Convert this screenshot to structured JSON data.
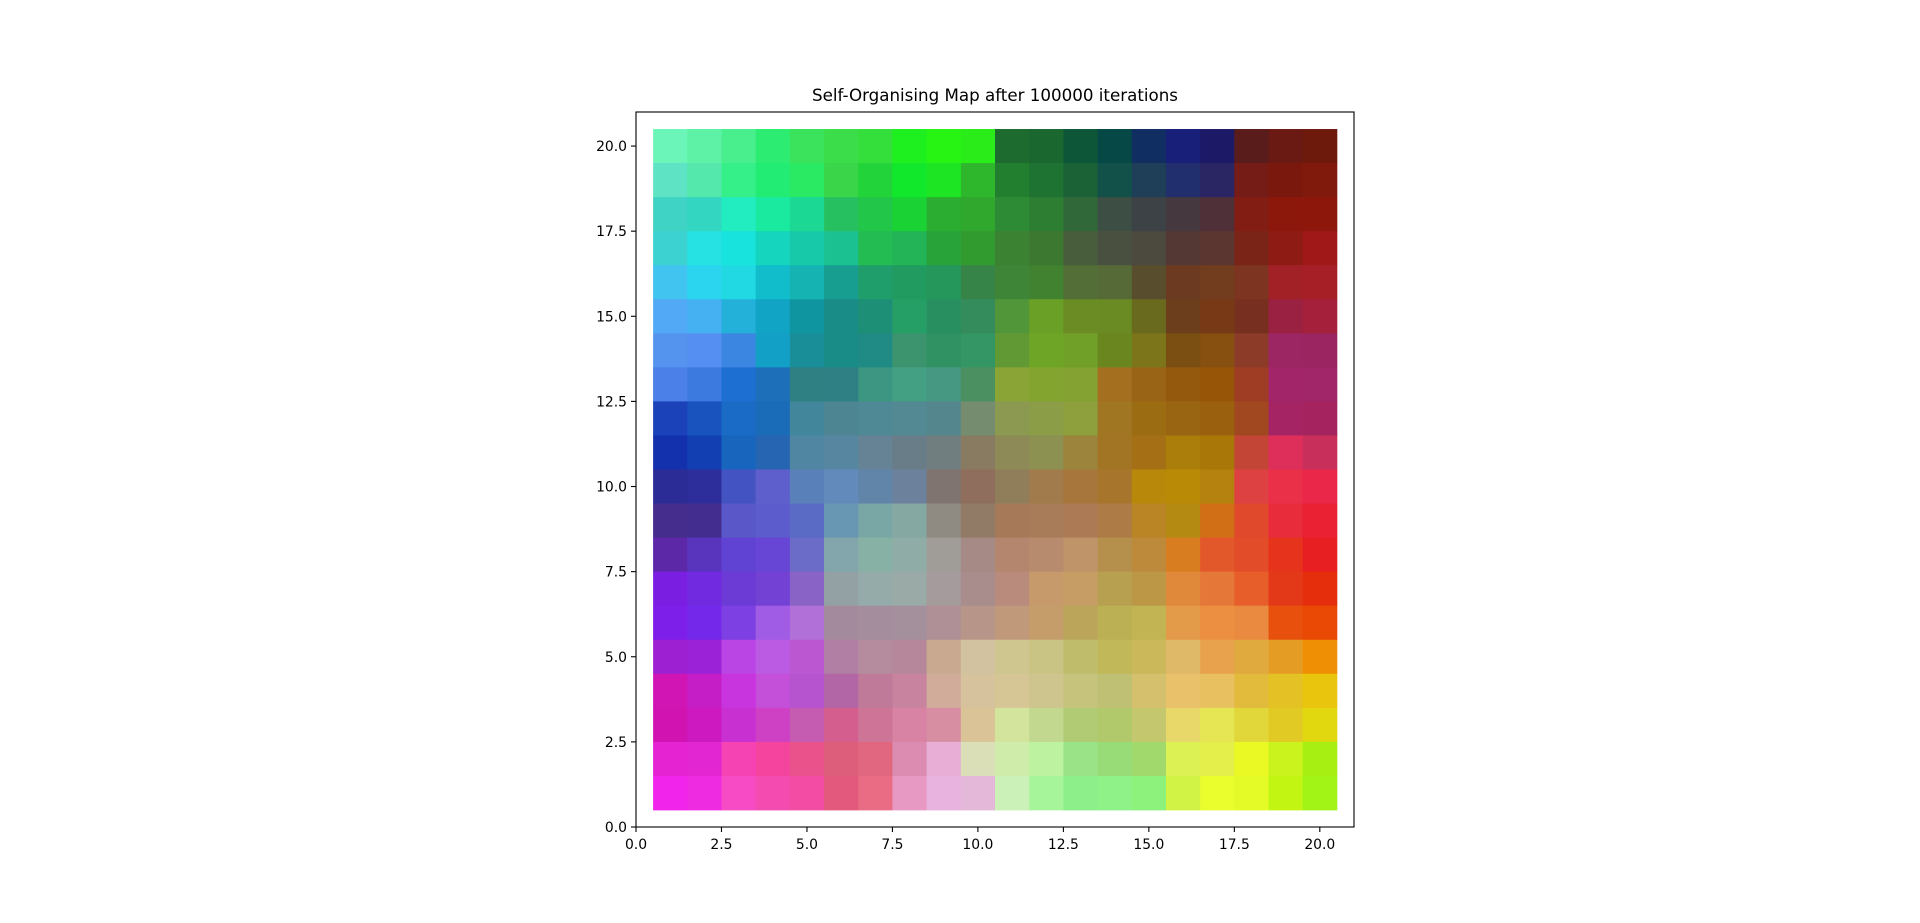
{
  "chart_data": {
    "type": "heatmap",
    "title": "Self-Organising Map after 100000 iterations",
    "xlabel": "",
    "ylabel": "",
    "xlim": [
      0.0,
      21.0
    ],
    "ylim": [
      0.0,
      21.0
    ],
    "x_ticks": [
      0.0,
      2.5,
      5.0,
      7.5,
      10.0,
      12.5,
      15.0,
      17.5,
      20.0
    ],
    "x_tick_labels": [
      "0.0",
      "2.5",
      "5.0",
      "7.5",
      "10.0",
      "12.5",
      "15.0",
      "17.5",
      "20.0"
    ],
    "y_ticks": [
      0.0,
      2.5,
      5.0,
      7.5,
      10.0,
      12.5,
      15.0,
      17.5,
      20.0
    ],
    "y_tick_labels": [
      "0.0",
      "2.5",
      "5.0",
      "7.5",
      "10.0",
      "12.5",
      "15.0",
      "17.5",
      "20.0"
    ],
    "grid": false,
    "cell_centers_x": [
      1,
      2,
      3,
      4,
      5,
      6,
      7,
      8,
      9,
      10,
      11,
      12,
      13,
      14,
      15,
      16,
      17,
      18,
      19,
      20
    ],
    "cell_centers_y_top_to_bottom": [
      20,
      19,
      18,
      17,
      16,
      15,
      14,
      13,
      12,
      11,
      10,
      9,
      8,
      7,
      6,
      5,
      4,
      3,
      2,
      1
    ],
    "cell_colors_rows_top_to_bottom": [
      [
        "#6cf5b8",
        "#5ef2a6",
        "#48ef8c",
        "#2ced72",
        "#3be25c",
        "#3bdd4b",
        "#34df3c",
        "#1ef01f",
        "#27f412",
        "#29ec18",
        "#1d6b2e",
        "#1a6830",
        "#0d5738",
        "#064845",
        "#112e63",
        "#171f78",
        "#1c1a66",
        "#5a1b1b",
        "#6a1913",
        "#6d1a0d"
      ],
      [
        "#5ee4c4",
        "#55e8ac",
        "#35ef88",
        "#22ec74",
        "#2aea63",
        "#3ad548",
        "#22d43a",
        "#12e82b",
        "#1ee523",
        "#2eb62d",
        "#237f30",
        "#1e7333",
        "#1b6237",
        "#12504a",
        "#1f3e58",
        "#222f6e",
        "#2a2563",
        "#761c17",
        "#7a180d",
        "#801a0c"
      ],
      [
        "#3fd3c5",
        "#33d6c0",
        "#22edc1",
        "#19eaa0",
        "#1bd994",
        "#27c061",
        "#22c648",
        "#1bd235",
        "#2aad30",
        "#30a82e",
        "#2d8b35",
        "#2d7d33",
        "#31683a",
        "#3d4e44",
        "#3d4247",
        "#46383f",
        "#4f3039",
        "#821d13",
        "#8c180c",
        "#8e170c"
      ],
      [
        "#3cd2d2",
        "#26e2e2",
        "#19e3dd",
        "#15d5be",
        "#17c9a8",
        "#1cc191",
        "#23bc52",
        "#22b456",
        "#28a33a",
        "#329b30",
        "#3b8232",
        "#3d7830",
        "#485d3c",
        "#4a5040",
        "#4c4a3f",
        "#543834",
        "#5b3530",
        "#7a2417",
        "#8e1b14",
        "#a11818"
      ],
      [
        "#41c4ef",
        "#2bd5ef",
        "#21d9e2",
        "#11bccb",
        "#15b4b2",
        "#179e91",
        "#1f9d6b",
        "#219b5f",
        "#25975b",
        "#378448",
        "#3e8538",
        "#408230",
        "#536e36",
        "#556a37",
        "#584d2c",
        "#6c3a20",
        "#713d1e",
        "#7d3420",
        "#a22126",
        "#a61f27"
      ],
      [
        "#52aaf6",
        "#45b1f2",
        "#23b1da",
        "#12a4c4",
        "#0f95a0",
        "#1a8c87",
        "#1e8f77",
        "#259f66",
        "#289060",
        "#348c5c",
        "#519739",
        "#6ba026",
        "#6b8b24",
        "#6a8a24",
        "#6a6a1f",
        "#6d3e1c",
        "#783a16",
        "#773020",
        "#9b2142",
        "#a5203a"
      ],
      [
        "#5594ee",
        "#558ff2",
        "#3b86e0",
        "#13a0c6",
        "#1a8e98",
        "#1a8c87",
        "#208a84",
        "#3c946f",
        "#309162",
        "#349565",
        "#619a35",
        "#6fa526",
        "#71a029",
        "#69861f",
        "#7c7519",
        "#7b4e12",
        "#874f10",
        "#8c3b28",
        "#9c2563",
        "#9b2561"
      ],
      [
        "#4b80e9",
        "#3d7ae0",
        "#1e6fd2",
        "#1c6fb8",
        "#2e8083",
        "#2e8085",
        "#3c9681",
        "#44a083",
        "#469883",
        "#4a9061",
        "#8aa536",
        "#83a52f",
        "#83a232",
        "#a47020",
        "#9a6417",
        "#95590d",
        "#975508",
        "#9e3d24",
        "#a12568",
        "#a12569"
      ],
      [
        "#1b42b9",
        "#1853be",
        "#1a6bc6",
        "#1b6cb8",
        "#41869a",
        "#4e8592",
        "#4e8995",
        "#528993",
        "#54878d",
        "#758d6e",
        "#8c9a51",
        "#8b9d46",
        "#8ea03e",
        "#a07623",
        "#9c6c13",
        "#9a6512",
        "#9b600e",
        "#a14821",
        "#a52463",
        "#a52460"
      ],
      [
        "#1331ad",
        "#1240b2",
        "#1865be",
        "#2665b1",
        "#5186a2",
        "#5786a1",
        "#668395",
        "#697d88",
        "#707e80",
        "#887b61",
        "#8e8a57",
        "#8c9051",
        "#9c843c",
        "#a27524",
        "#a57015",
        "#ab7d0b",
        "#a97708",
        "#c24535",
        "#dd2f5a",
        "#c92f5b"
      ],
      [
        "#2c2c96",
        "#2d2e9c",
        "#4353c2",
        "#5e5fcc",
        "#5a80b9",
        "#628bbb",
        "#6185a9",
        "#6c819c",
        "#807470",
        "#906e5d",
        "#907e5a",
        "#a27b4d",
        "#a6763d",
        "#a7752c",
        "#b8880a",
        "#b98a06",
        "#b5810f",
        "#de4142",
        "#e93048",
        "#ea2748"
      ],
      [
        "#442d8d",
        "#432d8e",
        "#5a58c9",
        "#5d5ccd",
        "#5a6bc6",
        "#6897b3",
        "#79a7a5",
        "#85a8a3",
        "#8f8a82",
        "#917b67",
        "#a67a59",
        "#a87c58",
        "#ac7a54",
        "#ad7b45",
        "#ba8524",
        "#b58a13",
        "#d16f16",
        "#e0492c",
        "#e82c3c",
        "#ea2033"
      ],
      [
        "#5d28a7",
        "#5935be",
        "#6143d4",
        "#6846d5",
        "#6a6cc8",
        "#82a6ab",
        "#88b1a6",
        "#8fada6",
        "#a09d99",
        "#a58a86",
        "#b4866e",
        "#b78b6e",
        "#be9468",
        "#b5904d",
        "#bd893b",
        "#d87d20",
        "#e3582a",
        "#e24c28",
        "#e5331c",
        "#e81f22"
      ],
      [
        "#7a1fe1",
        "#722ae0",
        "#6c3ad5",
        "#7441d5",
        "#8964c6",
        "#93a0a4",
        "#95aba9",
        "#9aaaa7",
        "#a59b9c",
        "#a88d8c",
        "#b88b7c",
        "#c79a6b",
        "#c69d65",
        "#b8a051",
        "#bc9846",
        "#e0893b",
        "#e57838",
        "#e75e2b",
        "#e43918",
        "#e52e0c"
      ],
      [
        "#7e1ee9",
        "#7428ea",
        "#7d40e2",
        "#a05ce4",
        "#b170d8",
        "#a38a9c",
        "#a48e9d",
        "#a4909c",
        "#ae9096",
        "#b79689",
        "#c0997a",
        "#c59d6b",
        "#baa55a",
        "#bcb055",
        "#c2b353",
        "#e49b49",
        "#ec8f40",
        "#ea8940",
        "#e8500e",
        "#e94805"
      ],
      [
        "#9e20d3",
        "#9c22d8",
        "#bb45e4",
        "#bb5ae2",
        "#bb58d1",
        "#b07fa3",
        "#b48c9e",
        "#b6879a",
        "#c9aa90",
        "#d3c2a0",
        "#cfc68f",
        "#c9c484",
        "#bfbc6c",
        "#c0b859",
        "#cbb85a",
        "#e0b968",
        "#e8a24e",
        "#e0aa3e",
        "#e59c24",
        "#ef8f03"
      ],
      [
        "#d114b4",
        "#c51ec7",
        "#c834dd",
        "#c44fd9",
        "#b654cf",
        "#b366a5",
        "#c07a99",
        "#c8839e",
        "#d1ac9b",
        "#d6c29c",
        "#d6c696",
        "#cec48d",
        "#c6c37d",
        "#bfc073",
        "#d4c06d",
        "#e8c16a",
        "#e9c060",
        "#e2ba3c",
        "#e4c124",
        "#eac50d"
      ],
      [
        "#d013b1",
        "#cc19c0",
        "#c930d2",
        "#ce41c5",
        "#c65bb2",
        "#d45e8d",
        "#ce7597",
        "#d983a4",
        "#d78ea3",
        "#d9c397",
        "#d3e49c",
        "#c1d88e",
        "#b1ca74",
        "#b1c96a",
        "#c4c76e",
        "#e8d869",
        "#e6e554",
        "#e1d73b",
        "#e2ca24",
        "#e1d80f"
      ],
      [
        "#e623d3",
        "#e226d1",
        "#f643b4",
        "#f4449e",
        "#e9528a",
        "#dd5e7b",
        "#e0677f",
        "#dd8cb1",
        "#e8aed6",
        "#dbdfb8",
        "#d0ecaa",
        "#bdf3a0",
        "#9ae487",
        "#98dc77",
        "#a1d96d",
        "#dbf154",
        "#e4ef4c",
        "#eaf924",
        "#caf21c",
        "#a7ee12"
      ],
      [
        "#f124ec",
        "#ef2be2",
        "#f64bc4",
        "#f44bb1",
        "#f34ca4",
        "#e3597e",
        "#ea6b84",
        "#e899c3",
        "#e8b3df",
        "#e4b8d8",
        "#ccf1b8",
        "#a6f59a",
        "#8cef89",
        "#8ff289",
        "#8cf27c",
        "#d1f345",
        "#eafd2d",
        "#e5fb28",
        "#c3f513",
        "#a1f415"
      ]
    ]
  }
}
